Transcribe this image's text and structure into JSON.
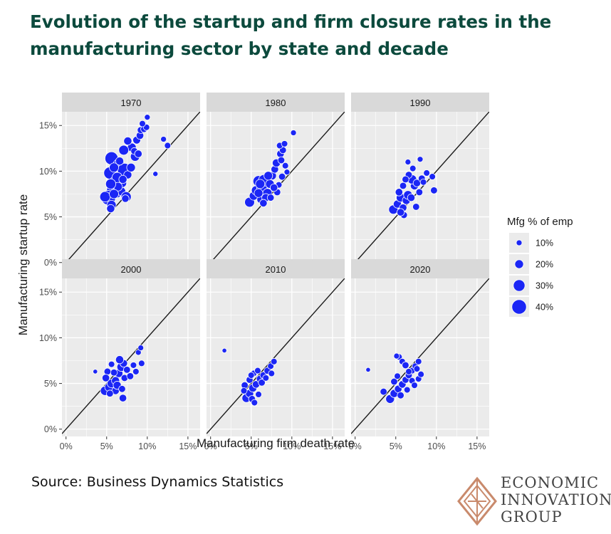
{
  "header": {
    "title": "Evolution of the startup and firm closure rates in the manufacturing sector by state and decade"
  },
  "footer": {
    "source": "Source: Business Dynamics Statistics"
  },
  "logo": {
    "lines": [
      "ECONOMIC",
      "INNOVATION",
      "GROUP"
    ],
    "color": "#c98a6c"
  },
  "colors": {
    "point_fill": "#1b26f5",
    "point_stroke": "#ffffff",
    "panel_bg": "#ebebeb",
    "strip_bg": "#d9d9d9",
    "grid": "#ffffff",
    "title": "#0c4a3d"
  },
  "chart_data": {
    "type": "scatter",
    "facet_by": "decade",
    "xlabel": "Manufacturing firm death rate",
    "ylabel": "Manufacturing startup rate",
    "xlim": [
      -0.5,
      16.5
    ],
    "ylim": [
      -0.8,
      16.5
    ],
    "xticks": [
      0,
      5,
      10,
      15
    ],
    "yticks": [
      0,
      5,
      10,
      15
    ],
    "tick_format": "percent",
    "reference_line": "y = x",
    "legend": {
      "title": "Mfg % of emp",
      "position": "right",
      "entries": [
        {
          "label": "10%",
          "value": 10
        },
        {
          "label": "20%",
          "value": 20
        },
        {
          "label": "30%",
          "value": 30
        },
        {
          "label": "40%",
          "value": 40
        }
      ]
    },
    "panels": [
      {
        "label": "1970",
        "points": [
          [
            5.6,
            11.4,
            35
          ],
          [
            5.4,
            9.8,
            32
          ],
          [
            6.5,
            10.7,
            30
          ],
          [
            7.2,
            10.1,
            38
          ],
          [
            6.0,
            8.8,
            28
          ],
          [
            5.8,
            8.0,
            34
          ],
          [
            5.2,
            7.1,
            40
          ],
          [
            4.8,
            7.2,
            26
          ],
          [
            5.6,
            6.3,
            22
          ],
          [
            5.5,
            5.9,
            18
          ],
          [
            6.2,
            7.6,
            24
          ],
          [
            6.8,
            7.8,
            20
          ],
          [
            7.4,
            7.2,
            25
          ],
          [
            6.9,
            8.7,
            21
          ],
          [
            7.6,
            9.6,
            18
          ],
          [
            8.0,
            10.4,
            20
          ],
          [
            8.5,
            11.6,
            22
          ],
          [
            8.1,
            12.6,
            20
          ],
          [
            7.1,
            12.3,
            24
          ],
          [
            7.6,
            13.3,
            18
          ],
          [
            8.7,
            13.4,
            17
          ],
          [
            9.1,
            13.9,
            16
          ],
          [
            9.2,
            14.5,
            14
          ],
          [
            9.6,
            14.6,
            13
          ],
          [
            9.9,
            14.8,
            12
          ],
          [
            9.4,
            15.2,
            12
          ],
          [
            10.0,
            15.9,
            10
          ],
          [
            12.0,
            13.5,
            10
          ],
          [
            12.5,
            12.8,
            12
          ],
          [
            11.0,
            9.7,
            8
          ],
          [
            6.3,
            9.3,
            26
          ],
          [
            5.9,
            10.4,
            22
          ],
          [
            6.4,
            8.3,
            20
          ],
          [
            7.0,
            9.1,
            18
          ],
          [
            5.9,
            7.5,
            22
          ],
          [
            5.5,
            8.6,
            25
          ],
          [
            7.3,
            7.0,
            16
          ],
          [
            8.4,
            12.2,
            14
          ],
          [
            8.9,
            11.9,
            16
          ],
          [
            6.6,
            11.1,
            18
          ]
        ]
      },
      {
        "label": "1980",
        "points": [
          [
            4.8,
            6.6,
            24
          ],
          [
            5.3,
            7.3,
            20
          ],
          [
            5.6,
            7.9,
            22
          ],
          [
            6.3,
            8.2,
            26
          ],
          [
            5.9,
            8.9,
            28
          ],
          [
            6.6,
            9.0,
            30
          ],
          [
            6.2,
            6.9,
            18
          ],
          [
            7.0,
            7.6,
            22
          ],
          [
            7.3,
            8.6,
            20
          ],
          [
            7.6,
            9.5,
            18
          ],
          [
            7.9,
            10.2,
            16
          ],
          [
            8.1,
            10.9,
            18
          ],
          [
            8.6,
            11.9,
            16
          ],
          [
            8.9,
            12.3,
            14
          ],
          [
            8.5,
            12.8,
            12
          ],
          [
            9.1,
            13.0,
            12
          ],
          [
            8.7,
            11.2,
            14
          ],
          [
            9.2,
            10.6,
            12
          ],
          [
            9.4,
            9.9,
            10
          ],
          [
            8.2,
            7.7,
            14
          ],
          [
            8.4,
            8.5,
            12
          ],
          [
            10.2,
            14.2,
            10
          ],
          [
            7.8,
            8.2,
            16
          ],
          [
            6.8,
            7.1,
            18
          ],
          [
            5.9,
            7.6,
            20
          ],
          [
            6.5,
            6.5,
            16
          ],
          [
            7.1,
            9.5,
            20
          ],
          [
            6.1,
            8.6,
            22
          ],
          [
            8.8,
            9.4,
            14
          ],
          [
            7.4,
            7.1,
            14
          ]
        ]
      },
      {
        "label": "1990",
        "points": [
          [
            4.7,
            5.8,
            22
          ],
          [
            5.2,
            6.4,
            18
          ],
          [
            5.6,
            7.1,
            20
          ],
          [
            5.9,
            6.0,
            16
          ],
          [
            6.3,
            6.8,
            18
          ],
          [
            6.5,
            7.4,
            20
          ],
          [
            6.9,
            7.1,
            16
          ],
          [
            7.3,
            8.4,
            18
          ],
          [
            7.0,
            9.1,
            22
          ],
          [
            6.6,
            9.6,
            14
          ],
          [
            7.6,
            8.7,
            16
          ],
          [
            8.2,
            9.2,
            14
          ],
          [
            8.4,
            8.8,
            12
          ],
          [
            8.8,
            9.8,
            12
          ],
          [
            9.5,
            9.4,
            12
          ],
          [
            9.7,
            7.9,
            14
          ],
          [
            8.0,
            11.3,
            10
          ],
          [
            6.5,
            11.0,
            10
          ],
          [
            7.1,
            10.3,
            12
          ],
          [
            5.9,
            8.4,
            14
          ],
          [
            5.4,
            7.7,
            16
          ],
          [
            6.0,
            5.2,
            14
          ],
          [
            7.5,
            6.1,
            14
          ],
          [
            6.2,
            9.1,
            14
          ],
          [
            7.9,
            7.7,
            14
          ],
          [
            5.6,
            5.5,
            16
          ]
        ]
      },
      {
        "label": "2000",
        "points": [
          [
            4.8,
            4.2,
            22
          ],
          [
            5.3,
            4.6,
            20
          ],
          [
            5.6,
            5.0,
            20
          ],
          [
            6.1,
            5.3,
            18
          ],
          [
            6.5,
            6.1,
            18
          ],
          [
            6.8,
            6.8,
            20
          ],
          [
            7.1,
            7.2,
            16
          ],
          [
            6.6,
            7.6,
            18
          ],
          [
            5.9,
            6.2,
            14
          ],
          [
            5.1,
            6.3,
            14
          ],
          [
            4.9,
            5.6,
            16
          ],
          [
            6.1,
            4.2,
            16
          ],
          [
            7.2,
            5.6,
            14
          ],
          [
            7.5,
            6.5,
            14
          ],
          [
            7.9,
            5.8,
            14
          ],
          [
            8.3,
            7.0,
            12
          ],
          [
            8.6,
            6.3,
            12
          ],
          [
            9.3,
            7.2,
            12
          ],
          [
            8.9,
            8.4,
            10
          ],
          [
            9.2,
            8.9,
            10
          ],
          [
            3.6,
            6.3,
            6
          ],
          [
            7.0,
            3.4,
            16
          ],
          [
            5.6,
            7.1,
            12
          ],
          [
            6.3,
            4.8,
            18
          ],
          [
            5.4,
            3.9,
            14
          ],
          [
            6.9,
            4.4,
            14
          ]
        ]
      },
      {
        "label": "2010",
        "points": [
          [
            4.4,
            3.4,
            20
          ],
          [
            4.8,
            3.9,
            18
          ],
          [
            5.2,
            4.5,
            18
          ],
          [
            5.6,
            4.9,
            16
          ],
          [
            6.1,
            5.5,
            16
          ],
          [
            6.5,
            5.9,
            14
          ],
          [
            7.0,
            6.4,
            14
          ],
          [
            7.4,
            6.9,
            12
          ],
          [
            7.8,
            7.4,
            12
          ],
          [
            4.2,
            4.8,
            14
          ],
          [
            4.8,
            5.4,
            14
          ],
          [
            5.3,
            6.1,
            12
          ],
          [
            5.8,
            6.4,
            12
          ],
          [
            6.3,
            5.1,
            14
          ],
          [
            6.8,
            5.6,
            12
          ],
          [
            5.1,
            3.3,
            14
          ],
          [
            4.1,
            4.2,
            12
          ],
          [
            5.0,
            5.9,
            12
          ],
          [
            5.9,
            3.8,
            12
          ],
          [
            1.7,
            8.6,
            6
          ],
          [
            7.5,
            6.1,
            12
          ],
          [
            5.4,
            2.9,
            12
          ]
        ]
      },
      {
        "label": "2020",
        "points": [
          [
            4.3,
            3.3,
            20
          ],
          [
            4.8,
            3.9,
            18
          ],
          [
            5.3,
            4.4,
            16
          ],
          [
            5.8,
            4.9,
            16
          ],
          [
            6.2,
            5.4,
            14
          ],
          [
            6.6,
            5.9,
            14
          ],
          [
            7.0,
            6.4,
            12
          ],
          [
            7.4,
            6.9,
            12
          ],
          [
            7.8,
            7.4,
            12
          ],
          [
            3.5,
            4.1,
            14
          ],
          [
            4.8,
            5.2,
            14
          ],
          [
            5.2,
            5.8,
            12
          ],
          [
            5.4,
            7.9,
            12
          ],
          [
            5.8,
            7.4,
            12
          ],
          [
            6.2,
            7.0,
            14
          ],
          [
            6.6,
            6.3,
            12
          ],
          [
            7.0,
            5.3,
            12
          ],
          [
            7.3,
            4.8,
            12
          ],
          [
            7.8,
            5.5,
            12
          ],
          [
            8.1,
            6.0,
            12
          ],
          [
            1.6,
            6.5,
            6
          ],
          [
            5.6,
            3.7,
            14
          ],
          [
            6.4,
            4.3,
            12
          ],
          [
            7.6,
            6.6,
            12
          ],
          [
            5.1,
            8.0,
            10
          ]
        ]
      }
    ]
  }
}
